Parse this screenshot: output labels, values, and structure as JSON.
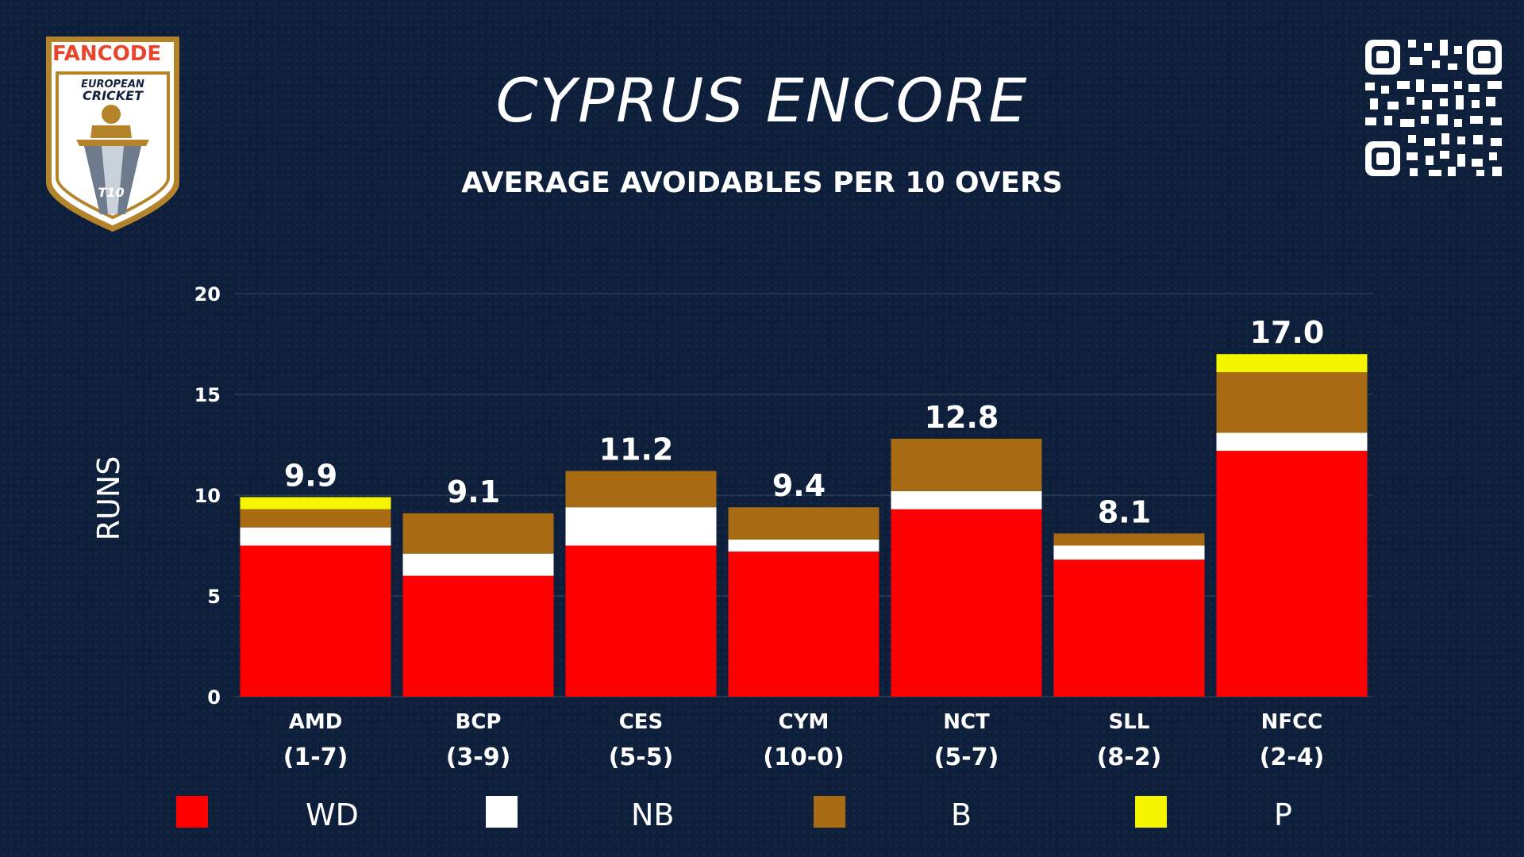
{
  "header": {
    "title": "CYPRUS ENCORE",
    "subtitle": "AVERAGE AVOIDABLES PER 10 OVERS"
  },
  "logo": {
    "brand_text": "FANCODE",
    "line1": "EUROPEAN",
    "line2": "CRICKET",
    "badge": "T10",
    "icon": "trophy-shield-logo"
  },
  "qr": {
    "icon": "qr-code-icon"
  },
  "colors": {
    "background": "#0d1f3a",
    "wd": "#ff0000",
    "nb": "#ffffff",
    "b": "#a86a12",
    "p": "#f5f500"
  },
  "chart_data": {
    "type": "bar",
    "stacked": true,
    "ylabel": "RUNS",
    "ylim": [
      0,
      20
    ],
    "yticks": [
      0,
      5,
      10,
      15,
      20
    ],
    "grid": true,
    "legend_position": "bottom",
    "categories": [
      "AMD",
      "BCP",
      "CES",
      "CYM",
      "NCT",
      "SLL",
      "NFCC"
    ],
    "records": [
      "(1-7)",
      "(3-9)",
      "(5-5)",
      "(10-0)",
      "(5-7)",
      "(8-2)",
      "(2-4)"
    ],
    "totals": [
      "9.9",
      "9.1",
      "11.2",
      "9.4",
      "12.8",
      "8.1",
      "17.0"
    ],
    "series": [
      {
        "name": "WD",
        "color": "#ff0000",
        "values": [
          7.5,
          6.0,
          7.5,
          7.2,
          9.3,
          6.8,
          12.2
        ]
      },
      {
        "name": "NB",
        "color": "#ffffff",
        "values": [
          0.9,
          1.1,
          1.9,
          0.6,
          0.9,
          0.7,
          0.9
        ]
      },
      {
        "name": "B",
        "color": "#a86a12",
        "values": [
          0.9,
          2.0,
          1.8,
          1.6,
          2.6,
          0.6,
          3.0
        ]
      },
      {
        "name": "P",
        "color": "#f5f500",
        "values": [
          0.6,
          0.0,
          0.0,
          0.0,
          0.0,
          0.0,
          0.9
        ]
      }
    ]
  }
}
